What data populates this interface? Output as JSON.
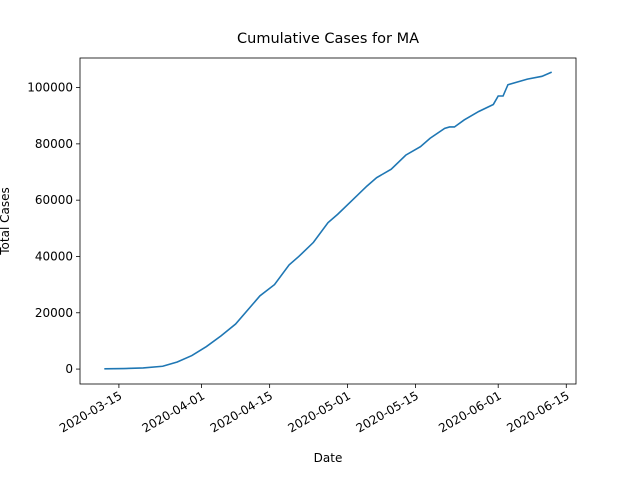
{
  "chart_data": {
    "type": "line",
    "title": "Cumulative Cases for MA",
    "x_label": "Date",
    "y_label": "Total Cases",
    "x": [
      "2020-03-12",
      "2020-03-16",
      "2020-03-20",
      "2020-03-24",
      "2020-03-27",
      "2020-03-30",
      "2020-04-02",
      "2020-04-05",
      "2020-04-08",
      "2020-04-11",
      "2020-04-13",
      "2020-04-16",
      "2020-04-19",
      "2020-04-21",
      "2020-04-24",
      "2020-04-27",
      "2020-04-29",
      "2020-05-02",
      "2020-05-05",
      "2020-05-07",
      "2020-05-10",
      "2020-05-13",
      "2020-05-16",
      "2020-05-18",
      "2020-05-21",
      "2020-05-22",
      "2020-05-23",
      "2020-05-25",
      "2020-05-28",
      "2020-05-31",
      "2020-06-01",
      "2020-06-02",
      "2020-06-03",
      "2020-06-07",
      "2020-06-10",
      "2020-06-12"
    ],
    "series": [
      {
        "name": "Total Cases",
        "color": "#1f77b4",
        "values": [
          100,
          200,
          400,
          1000,
          2500,
          4800,
          8000,
          11800,
          16000,
          22000,
          26000,
          30000,
          37000,
          40000,
          45000,
          52000,
          55000,
          60000,
          65000,
          68000,
          71000,
          76000,
          79000,
          82000,
          85500,
          86000,
          86000,
          88500,
          91500,
          94000,
          97000,
          97000,
          101000,
          103000,
          104000,
          105500
        ]
      }
    ],
    "xlim": [
      "2020-03-07",
      "2020-06-17"
    ],
    "xticks": [
      "2020-03-15",
      "2020-04-01",
      "2020-04-15",
      "2020-05-01",
      "2020-05-15",
      "2020-06-01",
      "2020-06-15"
    ],
    "ylim": [
      -5300,
      110500
    ],
    "yticks": [
      0,
      20000,
      40000,
      60000,
      80000,
      100000
    ]
  }
}
